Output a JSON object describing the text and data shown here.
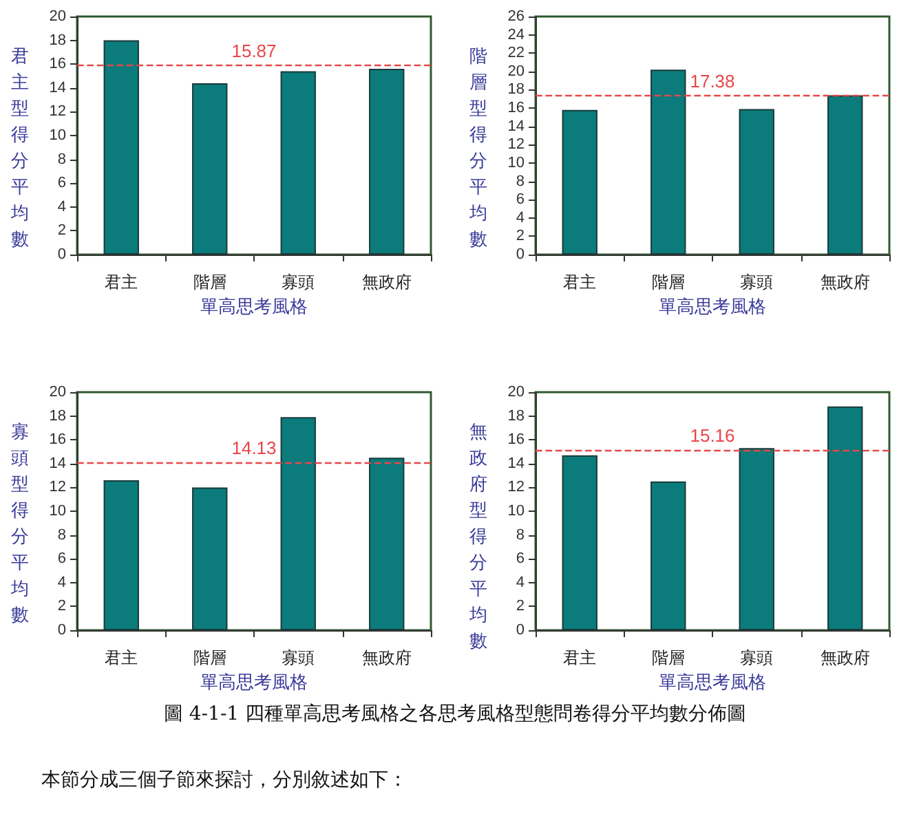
{
  "chart_data": [
    {
      "type": "bar",
      "xlabel": "單高思考風格",
      "ylabel": "君主型得分平均數",
      "categories": [
        "君主",
        "階層",
        "寡頭",
        "無政府"
      ],
      "values": [
        18.0,
        14.4,
        15.4,
        15.6
      ],
      "color": "#0b7b7b",
      "ylim": [
        0,
        20
      ],
      "yticks": [
        0,
        2,
        4,
        6,
        8,
        10,
        12,
        14,
        16,
        18,
        20
      ],
      "grid": false,
      "ref_lines": [
        {
          "axis": "y",
          "value": 15.87,
          "label": "15.87",
          "color": "#e8474a",
          "line_style": "dashed"
        }
      ]
    },
    {
      "type": "bar",
      "xlabel": "單高思考風格",
      "ylabel": "階層型得分平均數",
      "categories": [
        "君主",
        "階層",
        "寡頭",
        "無政府"
      ],
      "values": [
        15.8,
        20.2,
        15.9,
        17.4
      ],
      "color": "#0b7b7b",
      "ylim": [
        0,
        26
      ],
      "yticks": [
        0,
        2,
        4,
        6,
        8,
        10,
        12,
        14,
        16,
        18,
        20,
        22,
        24,
        26
      ],
      "grid": false,
      "ref_lines": [
        {
          "axis": "y",
          "value": 17.38,
          "label": "17.38",
          "color": "#e8474a",
          "line_style": "dashed"
        }
      ]
    },
    {
      "type": "bar",
      "xlabel": "單高思考風格",
      "ylabel": "寡頭型得分平均數",
      "categories": [
        "君主",
        "階層",
        "寡頭",
        "無政府"
      ],
      "values": [
        12.6,
        12.0,
        17.9,
        14.5
      ],
      "color": "#0b7b7b",
      "ylim": [
        0,
        20
      ],
      "yticks": [
        0,
        2,
        4,
        6,
        8,
        10,
        12,
        14,
        16,
        18,
        20
      ],
      "grid": false,
      "ref_lines": [
        {
          "axis": "y",
          "value": 14.13,
          "label": "14.13",
          "color": "#e8474a",
          "line_style": "dashed"
        }
      ]
    },
    {
      "type": "bar",
      "xlabel": "單高思考風格",
      "ylabel": "無政府型得分平均數",
      "categories": [
        "君主",
        "階層",
        "寡頭",
        "無政府"
      ],
      "values": [
        14.7,
        12.5,
        15.3,
        18.8
      ],
      "color": "#0b7b7b",
      "ylim": [
        0,
        20
      ],
      "yticks": [
        0,
        2,
        4,
        6,
        8,
        10,
        12,
        14,
        16,
        18,
        20
      ],
      "grid": false,
      "ref_lines": [
        {
          "axis": "y",
          "value": 15.16,
          "label": "15.16",
          "color": "#e8474a",
          "line_style": "dashed"
        }
      ],
      "annotations": [
        "圖 4-1-1 四種單高思考風格之各思考風格型態問卷得分平均數分佈圖",
        "本節分成三個子節來探討，分別敘述如下："
      ]
    }
  ]
}
